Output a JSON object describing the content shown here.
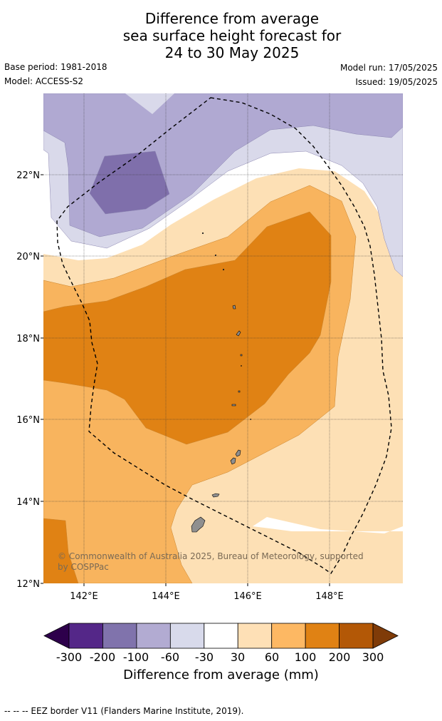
{
  "title": {
    "line1": "Difference from average",
    "line2": "sea surface height forecast for",
    "line3": "24 to 30 May 2025"
  },
  "meta": {
    "base_period": "Base period: 1981-2018",
    "model": "Model: ACCESS-S2",
    "model_run": "Model run: 17/05/2025",
    "issued": "Issued: 19/05/2025"
  },
  "map": {
    "lon_labels": [
      "142°E",
      "144°E",
      "146°E",
      "148°E"
    ],
    "lat_labels": [
      "22°N",
      "20°N",
      "18°N",
      "16°N",
      "14°N",
      "12°N"
    ],
    "copyright": "© Commonwealth of Australia 2025, Bureau of Meteorology, supported by COSPPac",
    "colors": {
      "c_neg200": "#7f6fab",
      "c_neg100": "#b0a9d2",
      "c_neg60": "#d9d9ea",
      "c_neutral": "#ffffff",
      "c_30": "#fde0b5",
      "c_60": "#f8b45e",
      "c_100": "#e08214",
      "land": "#8f8f8f"
    }
  },
  "colorbar": {
    "ticks": [
      "-300",
      "-200",
      "-100",
      "-60",
      "-30",
      "30",
      "60",
      "100",
      "200",
      "300"
    ],
    "colors": [
      "#2d004b",
      "#542788",
      "#8073ac",
      "#b2abd2",
      "#d8daeb",
      "#ffffff",
      "#fee0b6",
      "#fdb863",
      "#e08214",
      "#b35806",
      "#7f3b08"
    ],
    "label": "Difference from average (mm)"
  },
  "footnote": "--  --  -- EEZ border V11 (Flanders Marine Institute, 2019)."
}
